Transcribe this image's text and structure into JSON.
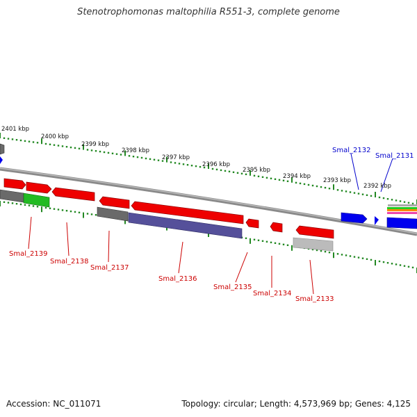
{
  "title": "Stenotrophomonas maltophilia R551-3, complete genome",
  "footer": {
    "accession": "Accession: NC_011071",
    "topology": "Topology: circular; Length: 4,573,969 bp; Genes: 4,125"
  },
  "colors": {
    "backbone": "#777777",
    "ruler": "#228822",
    "forward_gene": "#ee0000",
    "reverse_gene": "#0000ee",
    "grey_gene": "#666666",
    "green_gene": "#22bb22",
    "purple_gene": "#55509a",
    "light_grey_gene": "#bbbbbb",
    "forward_label": "#cc0000",
    "reverse_label": "#0000cc"
  },
  "ruler_labels": [
    "2401 kbp",
    "2400 kbp",
    "2399 kbp",
    "2398 kbp",
    "2397 kbp",
    "2396 kbp",
    "2395 kbp",
    "2394 kbp",
    "2393 kbp",
    "2392 kbp"
  ],
  "gene_labels": [
    {
      "text": "Smal_2139",
      "strand": "forward"
    },
    {
      "text": "Smal_2138",
      "strand": "forward"
    },
    {
      "text": "Smal_2137",
      "strand": "forward"
    },
    {
      "text": "Smal_2136",
      "strand": "forward"
    },
    {
      "text": "Smal_2135",
      "strand": "forward"
    },
    {
      "text": "Smal_2134",
      "strand": "forward"
    },
    {
      "text": "Smal_2133",
      "strand": "forward"
    },
    {
      "text": "Smal_2132",
      "strand": "reverse"
    },
    {
      "text": "Smal_2131",
      "strand": "reverse"
    }
  ]
}
